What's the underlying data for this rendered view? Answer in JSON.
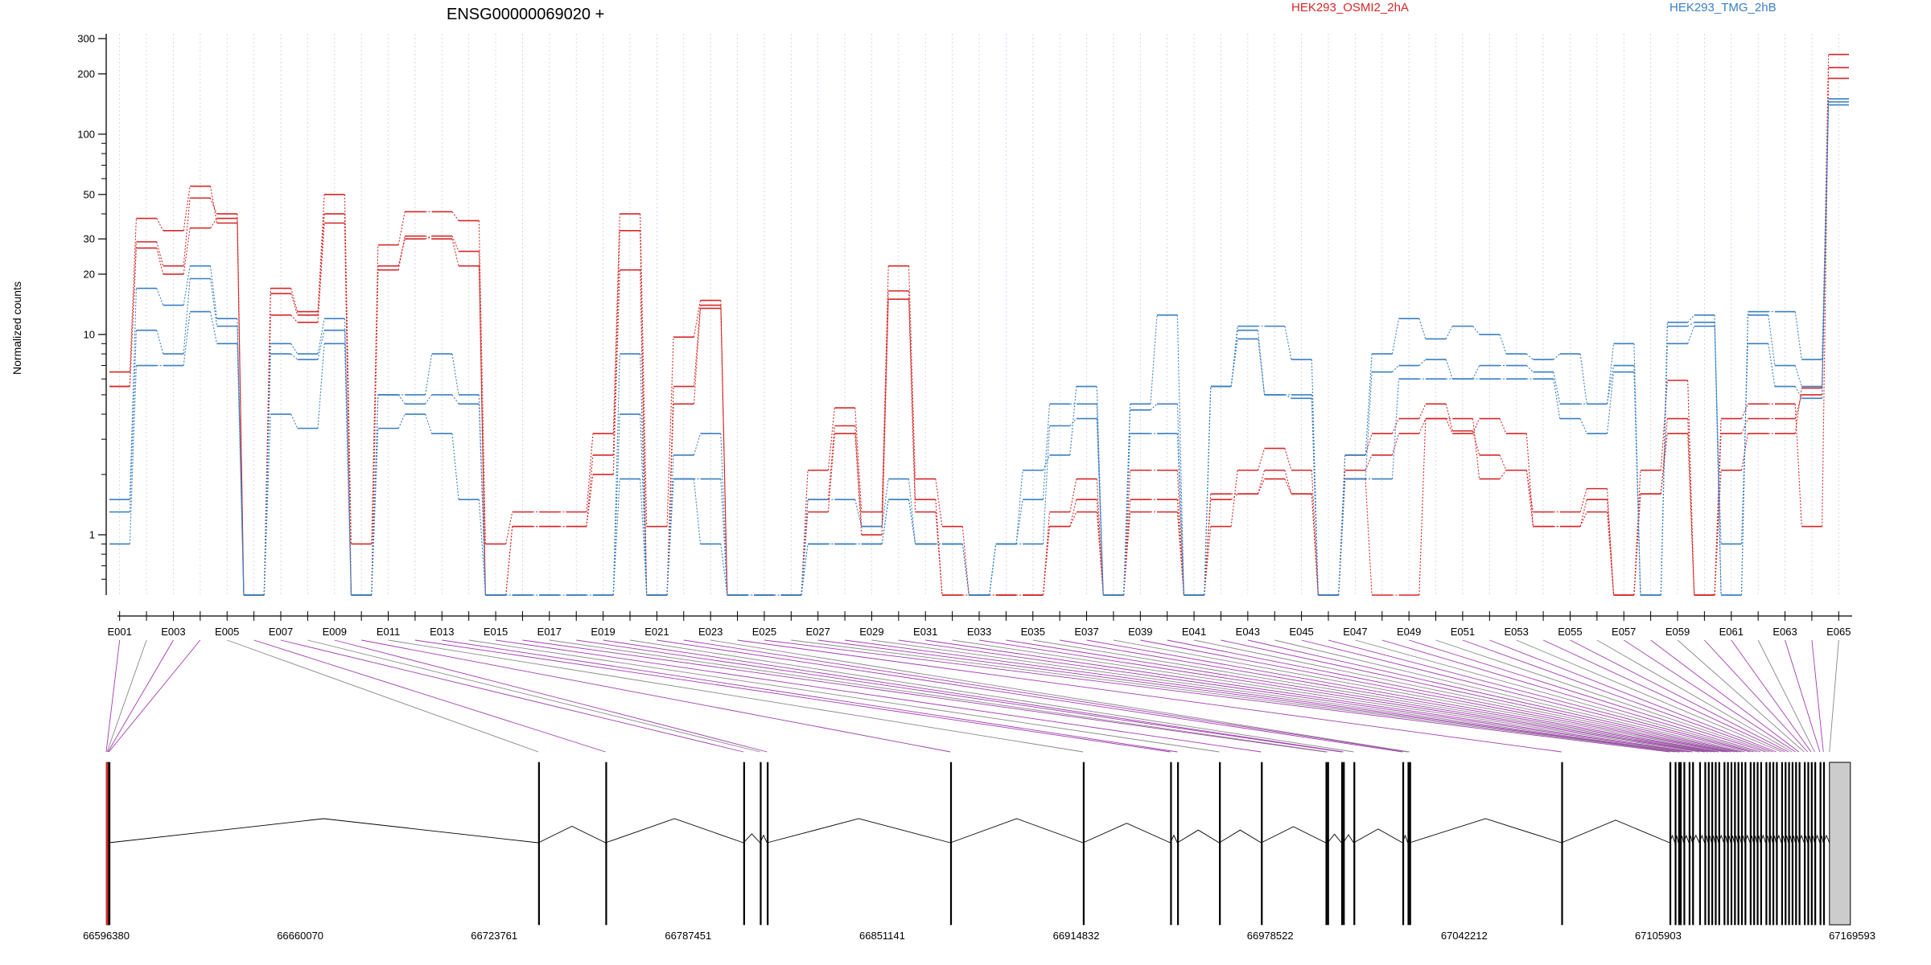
{
  "chart_data": {
    "type": "line",
    "title": "ENSG00000069020 +",
    "ylabel": "Normalized counts",
    "y_scale": "log",
    "ylim": [
      0.5,
      300
    ],
    "y_ticks": [
      {
        "value": 1,
        "label": "1"
      },
      {
        "value": 10,
        "label": "10"
      },
      {
        "value": 20,
        "label": "20"
      },
      {
        "value": 30,
        "label": "30"
      },
      {
        "value": 50,
        "label": "50"
      },
      {
        "value": 100,
        "label": "100"
      },
      {
        "value": 200,
        "label": "200"
      },
      {
        "value": 300,
        "label": "300"
      }
    ],
    "legend": [
      {
        "label": "HEK293_OSMI2_2hA",
        "color": "#d62728"
      },
      {
        "label": "HEK293_TMG_2hB",
        "color": "#3a7fc1"
      }
    ],
    "exon_count": 65,
    "exon_labels": [
      "E001",
      "E003",
      "E005",
      "E007",
      "E009",
      "E011",
      "E013",
      "E015",
      "E017",
      "E019",
      "E021",
      "E023",
      "E025",
      "E027",
      "E029",
      "E031",
      "E033",
      "E035",
      "E037",
      "E039",
      "E041",
      "E043",
      "E045",
      "E047",
      "E049",
      "E051",
      "E053",
      "E055",
      "E057",
      "E059",
      "E061",
      "E063",
      "E065"
    ],
    "genomic_ticks": [
      "66596380",
      "66660070",
      "66723761",
      "66787451",
      "66851141",
      "66914832",
      "66978522",
      "67042212",
      "67105903",
      "67169593"
    ],
    "genomic_range": [
      66596380,
      67169593
    ],
    "series": [
      {
        "group": "HEK293_OSMI2_2hA",
        "color": "#d62728",
        "values": [
          6.5,
          38,
          33,
          55,
          36,
          0.5,
          17,
          13,
          50,
          0.9,
          28,
          41,
          41,
          37,
          0.9,
          1.3,
          1.3,
          1.3,
          3.2,
          40,
          1.1,
          9.7,
          14.8,
          0.5,
          0.5,
          0.5,
          2.1,
          4.3,
          1.3,
          22,
          1.9,
          1.1,
          0.5,
          0.5,
          0.5,
          1.3,
          1.9,
          0.5,
          2.1,
          2.1,
          0.5,
          1.1,
          2.1,
          2.7,
          2.1,
          0.5,
          1.9,
          0.5,
          0.5,
          3.8,
          3.8,
          1.9,
          2.1,
          1.3,
          1.3,
          1.7,
          0.5,
          2.1,
          5.9,
          0.5,
          2.1,
          3.2,
          3.2,
          5.4,
          250
        ]
      },
      {
        "group": "HEK293_OSMI2_2hA",
        "color": "#d62728",
        "values": [
          5.5,
          29,
          22,
          48,
          40,
          0.5,
          16,
          12.5,
          40,
          0.5,
          22,
          30,
          31,
          26,
          0.5,
          1.1,
          1.1,
          1.1,
          2.5,
          33,
          0.5,
          5.5,
          14,
          0.5,
          0.5,
          0.5,
          1.5,
          3.5,
          1.1,
          16.5,
          1.5,
          0.5,
          0.5,
          0.5,
          0.5,
          1.1,
          1.5,
          0.5,
          1.5,
          1.5,
          0.5,
          1.5,
          1.6,
          2.1,
          1.6,
          0.5,
          2.5,
          3.2,
          3.8,
          4.5,
          3.3,
          2.5,
          2.1,
          1.1,
          1.1,
          1.5,
          0.5,
          1.6,
          3.8,
          0.5,
          3.2,
          3.8,
          3.8,
          5,
          215
        ]
      },
      {
        "group": "HEK293_OSMI2_2hA",
        "color": "#d62728",
        "values": [
          5.5,
          27,
          20,
          34,
          38,
          0.5,
          12.5,
          11.5,
          36,
          0.5,
          21,
          31,
          30,
          22,
          0.5,
          1.1,
          1.1,
          1.1,
          2,
          21,
          0.5,
          4.5,
          13.5,
          0.5,
          0.5,
          0.5,
          1.3,
          3.2,
          1,
          15,
          1.3,
          0.5,
          0.5,
          0.5,
          0.5,
          1.1,
          1.3,
          0.5,
          1.3,
          1.3,
          0.5,
          1.6,
          1.6,
          1.9,
          1.6,
          0.5,
          2.1,
          2.5,
          3.2,
          3.8,
          3.2,
          3.8,
          3.2,
          1.1,
          1.1,
          1.3,
          0.5,
          1.6,
          3.2,
          0.5,
          3.8,
          4.5,
          4.5,
          1.1,
          190
        ]
      },
      {
        "group": "HEK293_TMG_2hB",
        "color": "#3a7fc1",
        "values": [
          1.5,
          17,
          14,
          22,
          12,
          0.5,
          9,
          8,
          12,
          0.5,
          5,
          5,
          8,
          5,
          0.5,
          0.5,
          0.5,
          0.5,
          0.5,
          8,
          0.5,
          2.5,
          3.2,
          0.5,
          0.5,
          0.5,
          1.5,
          1.5,
          1.1,
          1.9,
          0.9,
          0.9,
          0.5,
          0.9,
          2.1,
          2.5,
          5.5,
          0.5,
          4.5,
          12.5,
          0.5,
          5.5,
          11,
          11,
          7.5,
          0.5,
          2.5,
          8,
          12,
          9.5,
          11,
          10,
          8,
          7.5,
          8,
          4.5,
          9,
          0.5,
          11.5,
          12.5,
          0.5,
          13,
          13,
          7.5,
          150
        ]
      },
      {
        "group": "HEK293_TMG_2hB",
        "color": "#3a7fc1",
        "values": [
          1.3,
          10.5,
          8,
          19,
          11,
          0.5,
          8,
          7.5,
          10.5,
          0.5,
          5,
          4.5,
          5,
          4.5,
          0.5,
          0.5,
          0.5,
          0.5,
          0.5,
          4,
          0.5,
          1.9,
          1.9,
          0.5,
          0.5,
          0.5,
          0.9,
          0.9,
          0.9,
          1.5,
          0.9,
          0.9,
          0.5,
          0.9,
          1.5,
          4.5,
          4.5,
          0.5,
          4.2,
          4.5,
          0.5,
          5.5,
          10.5,
          5,
          5,
          0.5,
          1.9,
          6.5,
          7,
          7.5,
          6,
          7,
          7,
          6.5,
          4.5,
          4.5,
          7,
          0.5,
          11,
          11.5,
          0.5,
          12.5,
          7,
          5.5,
          145
        ]
      },
      {
        "group": "HEK293_TMG_2hB",
        "color": "#3a7fc1",
        "values": [
          0.9,
          7,
          7,
          13,
          9,
          0.5,
          4,
          3.4,
          9,
          0.5,
          3.4,
          4,
          3.2,
          1.5,
          0.5,
          0.5,
          0.5,
          0.5,
          0.5,
          1.9,
          0.5,
          1.9,
          0.9,
          0.5,
          0.5,
          0.5,
          0.9,
          0.9,
          0.9,
          1.5,
          0.9,
          0.9,
          0.5,
          0.9,
          0.9,
          3.5,
          3.8,
          0.5,
          3.2,
          3.2,
          0.5,
          5.5,
          9.5,
          5,
          4.8,
          0.5,
          1.9,
          1.9,
          6,
          6,
          6,
          6,
          6,
          6,
          3.8,
          3.2,
          6.5,
          0.5,
          9,
          11,
          0.9,
          9,
          5.5,
          4.8,
          140
        ]
      }
    ]
  }
}
